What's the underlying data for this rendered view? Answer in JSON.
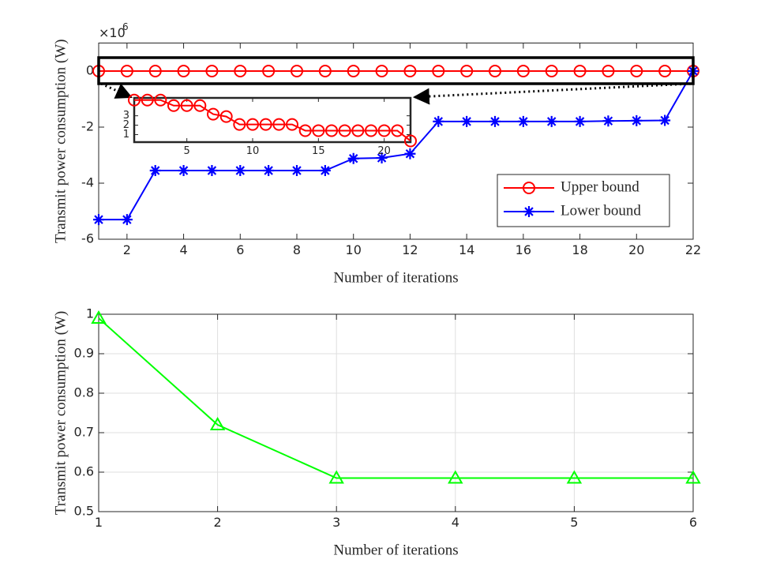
{
  "chart_data": [
    {
      "type": "line",
      "x": [
        1,
        2,
        3,
        4,
        5,
        6,
        7,
        8,
        9,
        10,
        11,
        12,
        13,
        14,
        15,
        16,
        17,
        18,
        19,
        20,
        21,
        22
      ],
      "series": [
        {
          "name": "Upper bound",
          "color": "#ff0000",
          "marker": "o",
          "values": [
            0,
            0,
            0,
            0,
            0,
            0,
            0,
            0,
            0,
            0,
            0,
            0,
            0,
            0,
            0,
            0,
            0,
            0,
            0,
            0,
            0,
            0
          ]
        },
        {
          "name": "Lower bound",
          "color": "#0000ff",
          "marker": "*",
          "values": [
            -5.3,
            -5.3,
            -3.55,
            -3.55,
            -3.55,
            -3.55,
            -3.55,
            -3.55,
            -3.55,
            -3.12,
            -3.1,
            -2.95,
            -1.8,
            -1.8,
            -1.8,
            -1.8,
            -1.8,
            -1.8,
            -1.78,
            -1.77,
            -1.76,
            0
          ]
        }
      ],
      "xlim": [
        1,
        22
      ],
      "xticks": [
        2,
        4,
        6,
        8,
        10,
        12,
        14,
        16,
        18,
        20,
        22
      ],
      "ylim": [
        -6,
        1
      ],
      "yticks": [
        -6,
        -4,
        -2,
        0
      ],
      "y_multiplier_base": "×10",
      "y_multiplier_exp": "6",
      "xlabel": "Number of iterations",
      "ylabel": "Transmit power consumption (W)",
      "legend": "southeast",
      "grid": false
    },
    {
      "type": "line",
      "x": [
        1,
        2,
        3,
        4,
        5,
        6,
        7,
        8,
        9,
        10,
        11,
        12,
        13,
        14,
        15,
        16,
        17,
        18,
        19,
        20,
        21,
        22
      ],
      "series": [
        {
          "color": "#ff0000",
          "marker": "o",
          "values": [
            4.67,
            4.67,
            4.67,
            4.08,
            4.08,
            4.08,
            3.17,
            2.92,
            2.08,
            2.08,
            2.08,
            2.08,
            2.08,
            1.42,
            1.42,
            1.42,
            1.42,
            1.42,
            1.42,
            1.42,
            1.42,
            0.33
          ]
        }
      ],
      "xlim": [
        1,
        22
      ],
      "xticks": [
        5,
        10,
        15,
        20
      ],
      "ylim": [
        0.2,
        4.9
      ],
      "yticks": [
        1,
        2,
        3
      ],
      "grid": false
    },
    {
      "type": "line",
      "x": [
        1,
        2,
        3,
        4,
        5,
        6
      ],
      "series": [
        {
          "color": "#00ff00",
          "marker": "^",
          "values": [
            0.99,
            0.72,
            0.585,
            0.585,
            0.585,
            0.585
          ]
        }
      ],
      "xlim": [
        1,
        6
      ],
      "xticks": [
        1,
        2,
        3,
        4,
        5,
        6
      ],
      "ylim": [
        0.5,
        1
      ],
      "yticks": [
        0.5,
        0.6,
        0.7,
        0.8,
        0.9,
        1
      ],
      "xlabel": "Number of iterations",
      "ylabel": "Transmit power consumption (W)",
      "grid": true
    }
  ]
}
